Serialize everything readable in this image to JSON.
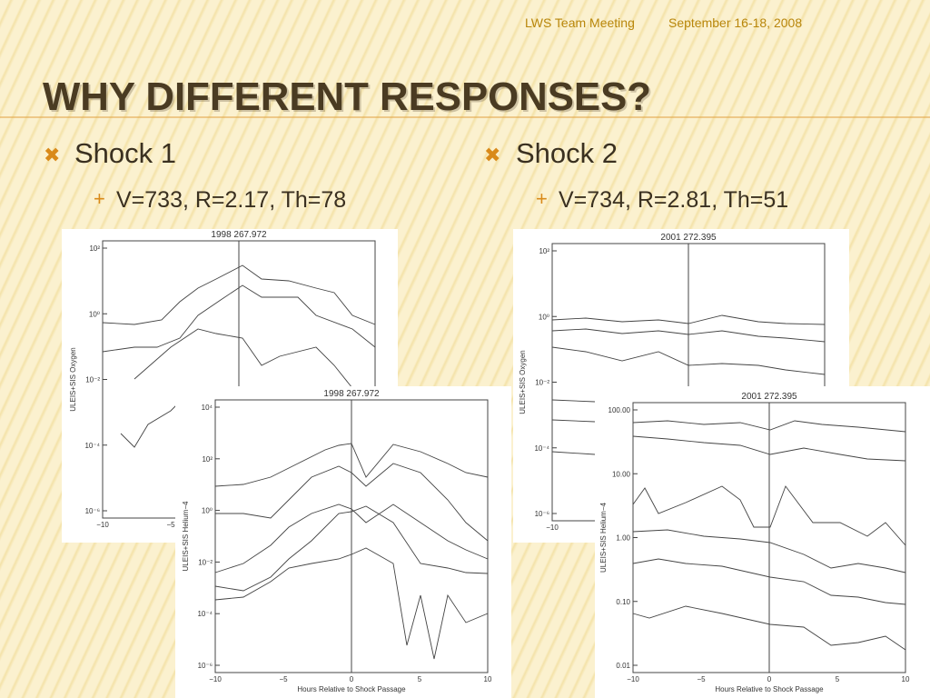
{
  "header": {
    "meeting": "LWS Team Meeting",
    "date": "September 16-18, 2008"
  },
  "title": "WHY DIFFERENT RESPONSES?",
  "columns": [
    {
      "heading": "Shock 1",
      "detail": "V=733, R=2.17, Th=78"
    },
    {
      "heading": "Shock 2",
      "detail": "V=734, R=2.81, Th=51"
    }
  ],
  "figures": [
    {
      "title": "1998   267.972",
      "y_label": "ULEIS+SIS Oxygen",
      "yticks": [
        "10²",
        "10⁰",
        "10⁻²",
        "10⁻⁴",
        "10⁻⁶"
      ],
      "xticks": [
        "−10",
        "−5"
      ]
    },
    {
      "title": "2001   272.395",
      "y_label": "ULEIS+SIS Oxygen",
      "yticks": [
        "10²",
        "10⁰",
        "10⁻²",
        "10⁻⁴",
        "10⁻⁶"
      ],
      "xticks": [
        "−10"
      ]
    },
    {
      "title": "1998   267.972",
      "y_label": "ULEIS+SIS Helium−4",
      "x_label": "Hours Relative to Shock Passage",
      "yticks": [
        "10⁴",
        "10²",
        "10⁰",
        "10⁻²",
        "10⁻⁴",
        "10⁻⁶"
      ],
      "xticks": [
        "−10",
        "−5",
        "0",
        "5",
        "10"
      ]
    },
    {
      "title": "2001   272.395",
      "y_label": "ULEIS+SIS Helium−4",
      "x_label": "Hours Relative to Shock Passage",
      "yticks": [
        "100.00",
        "10.00",
        "1.00",
        "0.10",
        "0.01"
      ],
      "xticks": [
        "−10",
        "−5",
        "0",
        "5",
        "10"
      ]
    }
  ]
}
